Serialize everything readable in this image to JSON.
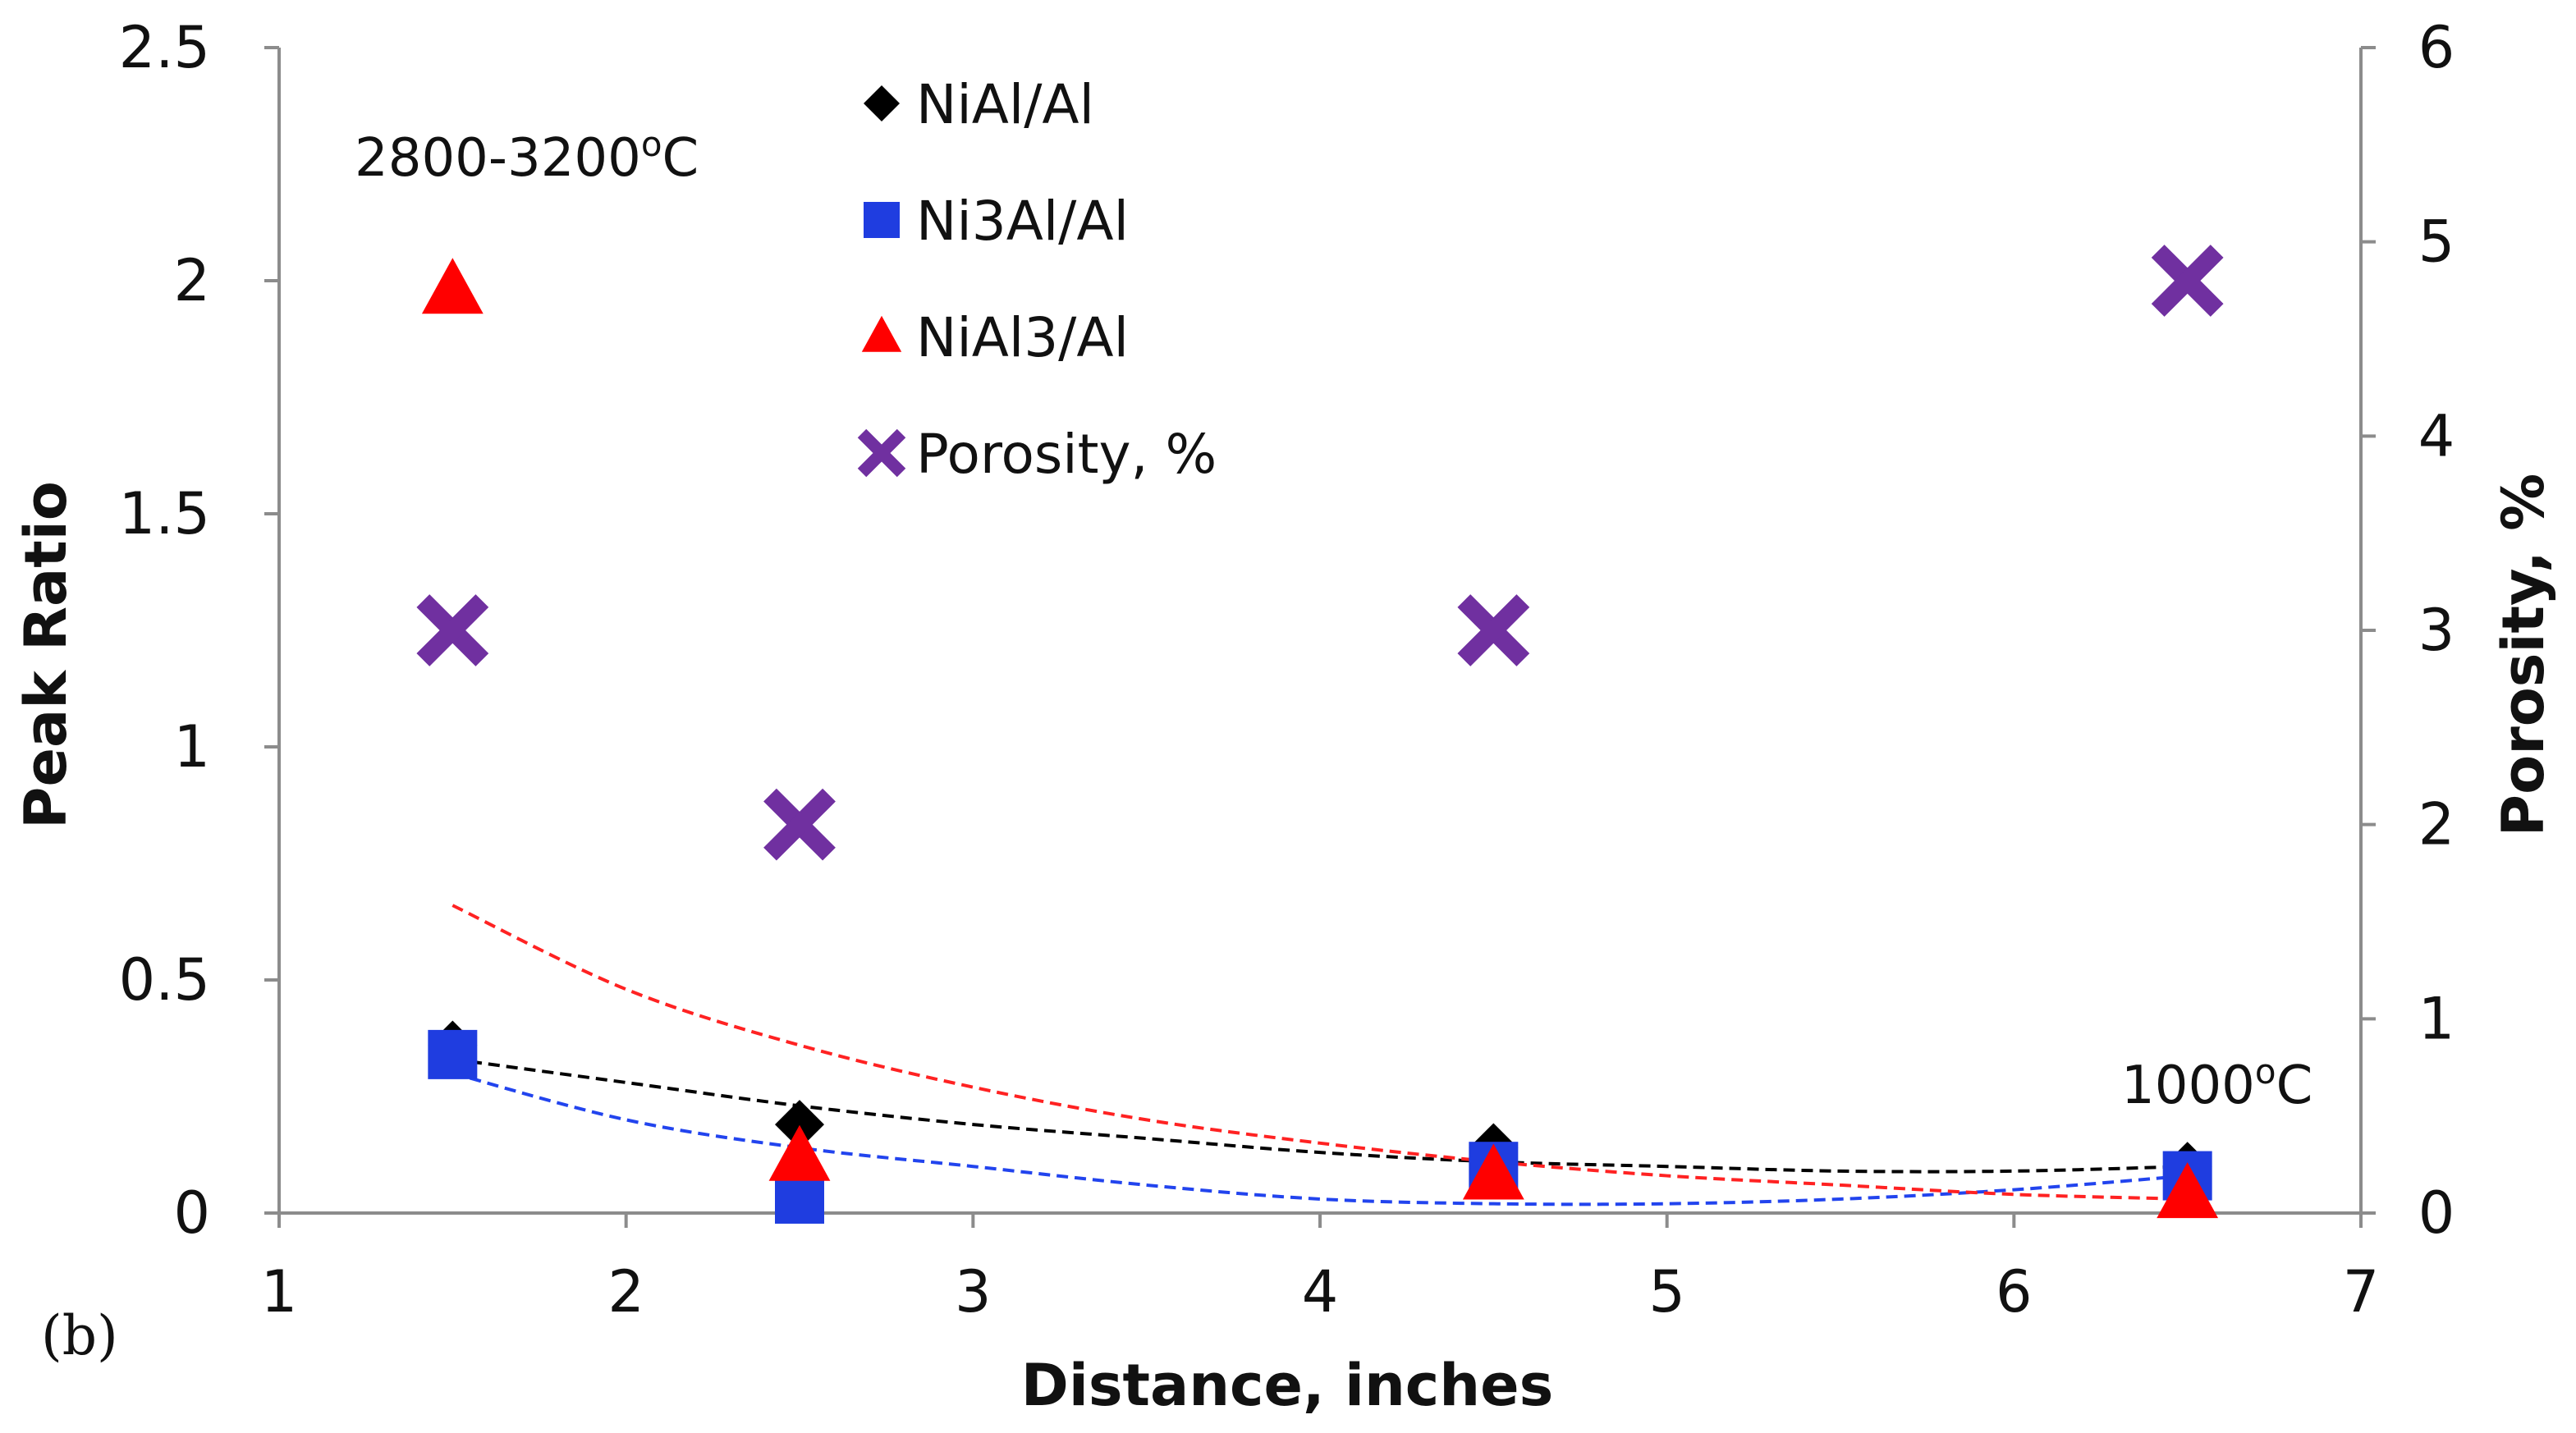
{
  "chart_data": {
    "type": "scatter",
    "panel_label": "(b)",
    "xlabel": "Distance, inches",
    "ylabel": "Peak Ratio",
    "y2label": "Porosity, %",
    "xlim": [
      1,
      7
    ],
    "ylim": [
      0,
      2.5
    ],
    "y2lim": [
      0,
      6
    ],
    "xticks": [
      1,
      2,
      3,
      4,
      5,
      6,
      7
    ],
    "yticks": [
      0,
      0.5,
      1,
      1.5,
      2,
      2.5
    ],
    "y2ticks": [
      0,
      1,
      2,
      3,
      4,
      5,
      6
    ],
    "xtick_labels": [
      "1",
      "2",
      "3",
      "4",
      "5",
      "6",
      "7"
    ],
    "ytick_labels": [
      "0",
      "0.5",
      "1",
      "1.5",
      "2",
      "2.5"
    ],
    "y2tick_labels": [
      "0",
      "1",
      "2",
      "3",
      "4",
      "5",
      "6"
    ],
    "grid": false,
    "legend_position": "top-center",
    "series": [
      {
        "name": "NiAl/Al",
        "marker": "diamond",
        "color": "#000000",
        "axis": "left",
        "x": [
          1.5,
          2.5,
          4.5,
          6.5
        ],
        "y": [
          0.36,
          0.19,
          0.14,
          0.1
        ],
        "trendline": {
          "color": "#000000",
          "x": [
            1.5,
            2.0,
            2.5,
            3.0,
            3.5,
            4.0,
            4.5,
            5.0,
            5.5,
            6.0,
            6.5
          ],
          "y": [
            0.33,
            0.28,
            0.23,
            0.19,
            0.16,
            0.13,
            0.11,
            0.1,
            0.09,
            0.09,
            0.1
          ]
        }
      },
      {
        "name": "Ni3Al/Al",
        "marker": "square",
        "color": "#1f3de0",
        "axis": "left",
        "x": [
          1.5,
          2.5,
          4.5,
          6.5
        ],
        "y": [
          0.34,
          0.03,
          0.1,
          0.08
        ],
        "trendline": {
          "color": "#2244ee",
          "x": [
            1.5,
            2.0,
            2.5,
            3.0,
            3.5,
            4.0,
            4.5,
            5.0,
            5.5,
            6.0,
            6.5
          ],
          "y": [
            0.3,
            0.2,
            0.14,
            0.1,
            0.06,
            0.03,
            0.02,
            0.02,
            0.03,
            0.05,
            0.08
          ]
        }
      },
      {
        "name": "NiAl3/Al",
        "marker": "triangle",
        "color": "#ff0000",
        "axis": "left",
        "x": [
          1.5,
          2.5,
          4.5,
          6.5
        ],
        "y": [
          1.98,
          0.12,
          0.08,
          0.04
        ],
        "trendline": {
          "color": "#ff2222",
          "x": [
            1.5,
            2.0,
            2.5,
            3.0,
            3.5,
            4.0,
            4.5,
            5.0,
            5.5,
            6.0,
            6.5
          ],
          "y": [
            0.66,
            0.48,
            0.36,
            0.27,
            0.2,
            0.15,
            0.11,
            0.08,
            0.06,
            0.04,
            0.03
          ]
        }
      },
      {
        "name": "Porosity, %",
        "marker": "x",
        "color": "#7030a0",
        "axis": "right",
        "x": [
          1.5,
          2.5,
          4.5,
          6.5
        ],
        "y": [
          3.0,
          2.0,
          3.0,
          4.8
        ]
      }
    ],
    "annotations": [
      {
        "text": "2800-3200",
        "superscript": "o",
        "suffix": "C",
        "position": "top-left"
      },
      {
        "text": "1000",
        "superscript": "o",
        "suffix": "C",
        "position": "bottom-right"
      }
    ]
  }
}
